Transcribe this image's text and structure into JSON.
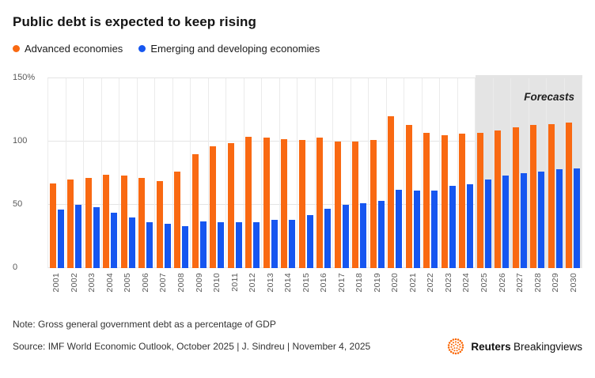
{
  "header": {
    "title": "Public debt is expected to keep rising"
  },
  "legend": [
    {
      "label": "Advanced economies",
      "color": "#f96912"
    },
    {
      "label": "Emerging and developing economies",
      "color": "#1656f0"
    }
  ],
  "chart_data": {
    "type": "bar",
    "title": "Public debt is expected to keep rising",
    "categories": [
      "2001",
      "2002",
      "2003",
      "2004",
      "2005",
      "2006",
      "2007",
      "2008",
      "2009",
      "2010",
      "2011",
      "2012",
      "2013",
      "2014",
      "2015",
      "2016",
      "2017",
      "2018",
      "2019",
      "2020",
      "2021",
      "2022",
      "2023",
      "2024",
      "2025",
      "2026",
      "2027",
      "2028",
      "2029",
      "2030"
    ],
    "series": [
      {
        "name": "Advanced economies",
        "color": "#f96912",
        "values": [
          67,
          70,
          71,
          74,
          73,
          71,
          69,
          76,
          90,
          96,
          99,
          104,
          103,
          102,
          101,
          103,
          100,
          100,
          101,
          120,
          113,
          107,
          105,
          106,
          107,
          109,
          111,
          113,
          114,
          115
        ]
      },
      {
        "name": "Emerging and developing economies",
        "color": "#1656f0",
        "values": [
          46,
          50,
          48,
          44,
          40,
          36,
          35,
          33,
          37,
          36,
          36,
          36,
          38,
          38,
          42,
          47,
          50,
          51,
          53,
          62,
          61,
          61,
          65,
          66,
          70,
          73,
          75,
          76,
          78,
          79
        ]
      }
    ],
    "xlabel": "",
    "ylabel": "",
    "ylim": [
      0,
      150
    ],
    "yticks": [
      0,
      50,
      100,
      150
    ],
    "ytick_labels": [
      "0",
      "50",
      "100",
      "150%"
    ],
    "grid": true,
    "legend_position": "top-left",
    "forecast": {
      "label": "Forecasts",
      "start_category": "2025"
    }
  },
  "footer": {
    "note": "Note: Gross general government debt as a percentage of GDP",
    "source": "Source: IMF World Economic Outlook, October 2025 | J. Sindreu | November 4, 2025",
    "brand": {
      "name": "Reuters",
      "suffix": "Breakingviews",
      "logo_color": "#fa6400"
    }
  }
}
